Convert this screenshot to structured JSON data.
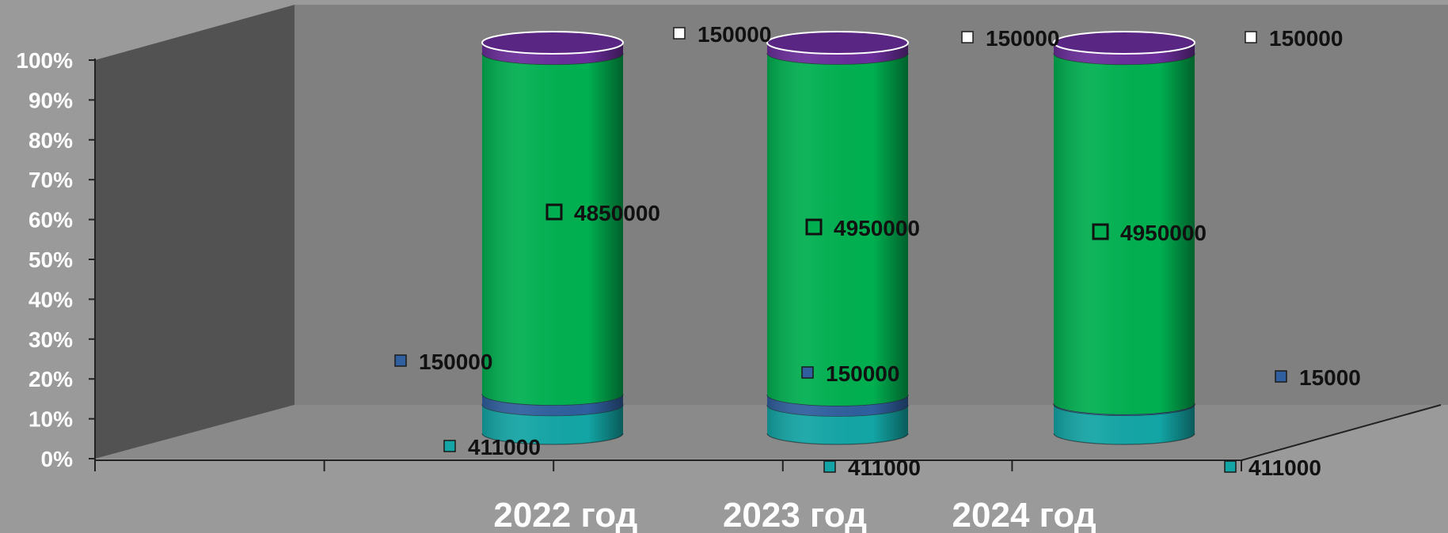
{
  "chart_data": {
    "type": "bar",
    "stacked": "percent",
    "three_d": true,
    "title": "",
    "xlabel": "",
    "ylabel": "",
    "ylim": [
      0,
      100
    ],
    "y_ticks": [
      "0%",
      "10%",
      "20%",
      "30%",
      "40%",
      "50%",
      "60%",
      "70%",
      "80%",
      "90%",
      "100%"
    ],
    "categories": [
      "2022 год",
      "2023 год",
      "2024 год"
    ],
    "series": [
      {
        "values": [
          411000,
          411000,
          411000
        ],
        "color": "#13a5a5"
      },
      {
        "values": [
          150000,
          150000,
          15000
        ],
        "color": "#2f5f9e"
      },
      {
        "values": [
          4850000,
          4950000,
          4950000
        ],
        "color": "#00b050"
      },
      {
        "values": [
          150000,
          150000,
          150000
        ],
        "color": "#6a2d9a"
      }
    ],
    "data_labels": [
      [
        "411000",
        "411000",
        "411000"
      ],
      [
        "150000",
        "150000",
        "15000"
      ],
      [
        "4850000",
        "4950000",
        "4950000"
      ],
      [
        "150000",
        "150000",
        "150000"
      ]
    ],
    "grid": false,
    "legend": "none"
  },
  "colors": {
    "background": "#9a9a9a",
    "back_wall": "#808080",
    "side_wall": "#525252",
    "floor": "#8a8a8a",
    "axis_text": "#ffffff",
    "label_text": "#111111"
  }
}
